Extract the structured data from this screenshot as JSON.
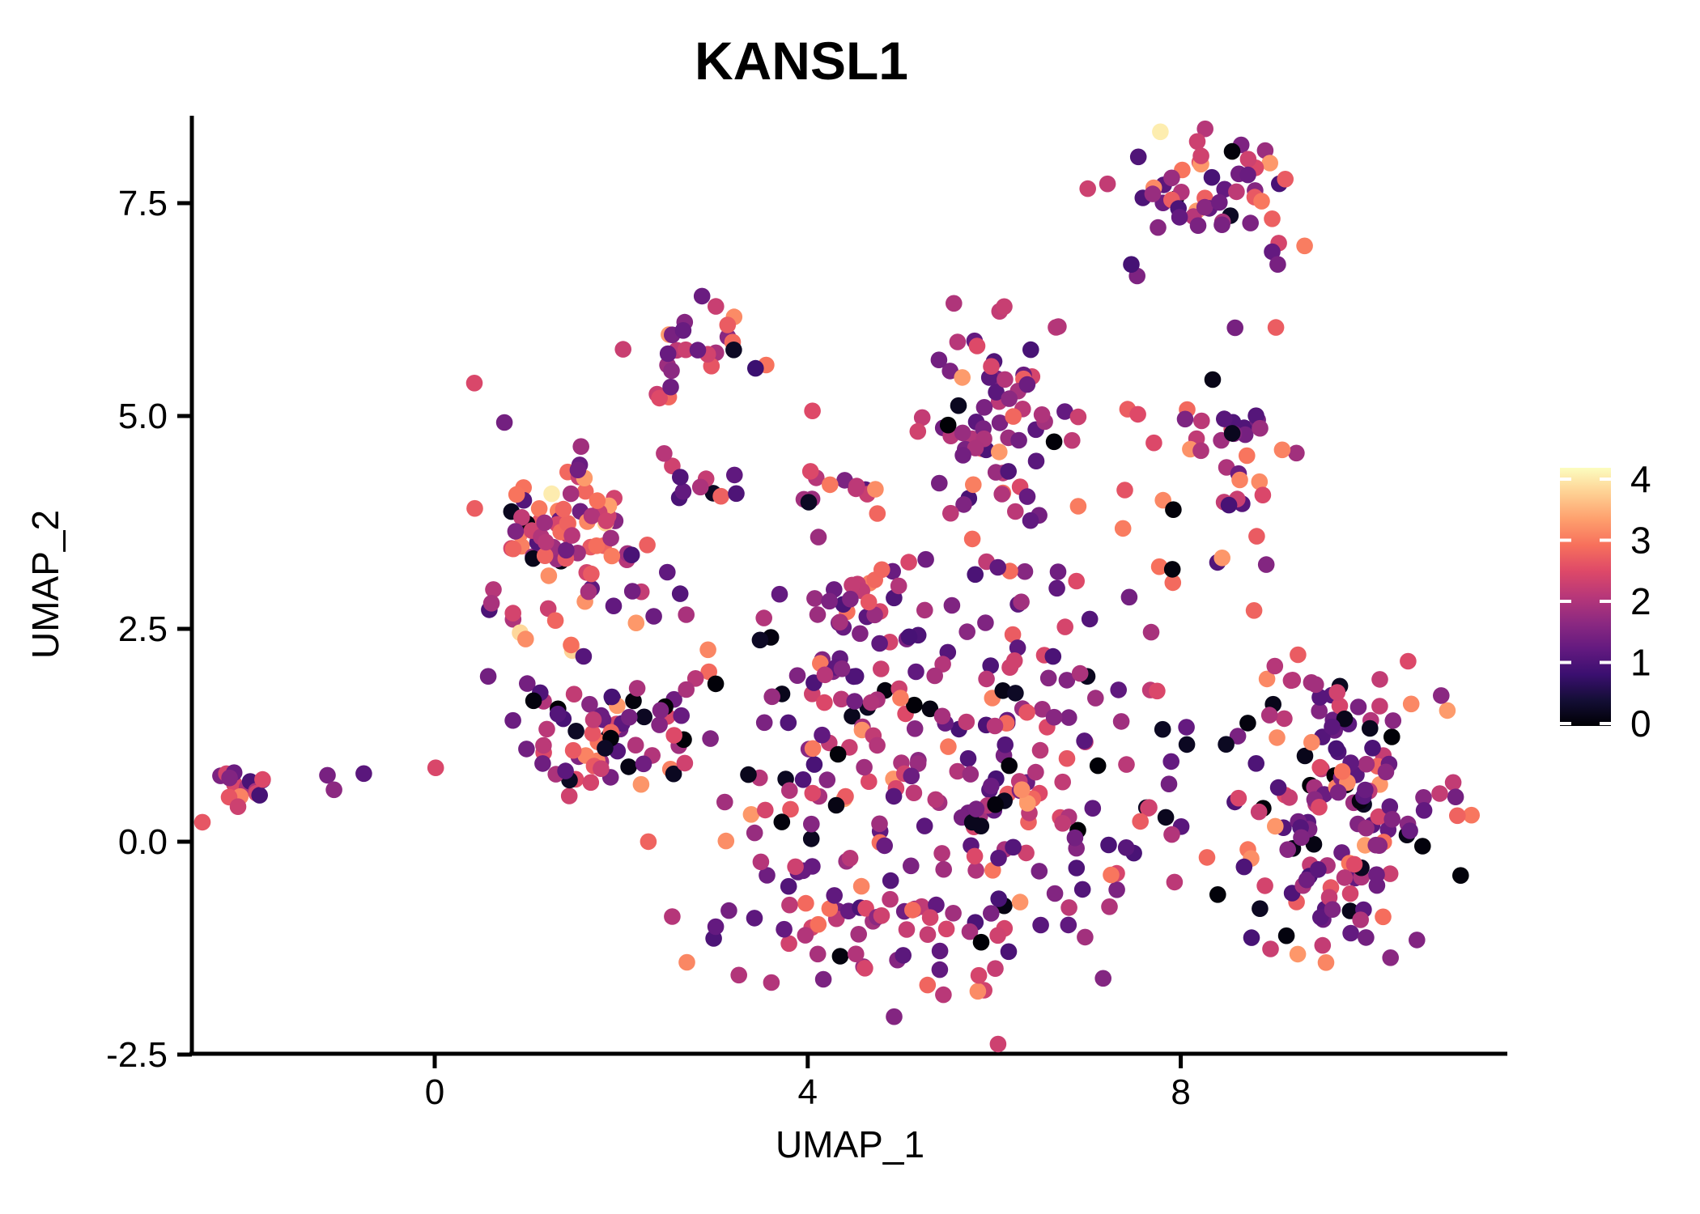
{
  "figure": {
    "background": "#ffffff",
    "axis_color": "#000000",
    "text_color": "#000000"
  },
  "chart_data": {
    "type": "scatter",
    "title": "KANSL1",
    "xlabel": "UMAP_1",
    "ylabel": "UMAP_2",
    "xlim": [
      -2.6,
      11.5
    ],
    "ylim": [
      -2.5,
      8.53
    ],
    "grid": false,
    "xticks": [
      {
        "value": 0,
        "label": "0"
      },
      {
        "value": 4,
        "label": "4"
      },
      {
        "value": 8,
        "label": "8"
      }
    ],
    "yticks": [
      {
        "value": -2.5,
        "label": "-2.5"
      },
      {
        "value": 0.0,
        "label": "0.0"
      },
      {
        "value": 2.5,
        "label": "2.5"
      },
      {
        "value": 5.0,
        "label": "5.0"
      },
      {
        "value": 7.5,
        "label": "7.5"
      }
    ],
    "colorbar": {
      "position": "right",
      "range": [
        0,
        4
      ],
      "ticks": [
        {
          "value": 0,
          "label": "0"
        },
        {
          "value": 1,
          "label": "1"
        },
        {
          "value": 2,
          "label": "2"
        },
        {
          "value": 3,
          "label": "3"
        },
        {
          "value": 4,
          "label": "4"
        }
      ]
    },
    "colormap": {
      "name": "magma",
      "stops": [
        {
          "t": 0.0,
          "hex": "#000004"
        },
        {
          "t": 0.1,
          "hex": "#140e36"
        },
        {
          "t": 0.2,
          "hex": "#3b0f70"
        },
        {
          "t": 0.3,
          "hex": "#641a80"
        },
        {
          "t": 0.4,
          "hex": "#8c2981"
        },
        {
          "t": 0.5,
          "hex": "#b73779"
        },
        {
          "t": 0.6,
          "hex": "#de4968"
        },
        {
          "t": 0.7,
          "hex": "#f7705c"
        },
        {
          "t": 0.8,
          "hex": "#fe9f6d"
        },
        {
          "t": 0.9,
          "hex": "#fecf92"
        },
        {
          "t": 1.0,
          "hex": "#fcfdbf"
        }
      ]
    },
    "point_style": {
      "radius_px": 10.3
    },
    "expression_bins": [
      {
        "base": 0.0,
        "jitter": 0.28
      },
      {
        "base": 0.9,
        "jitter": 0.7
      },
      {
        "base": 1.7,
        "jitter": 0.7
      },
      {
        "base": 2.5,
        "jitter": 0.7
      },
      {
        "base": 3.45,
        "jitter": 0.55
      }
    ],
    "clusters": [
      {
        "name": "far-left-blob",
        "cx": -2.13,
        "cy": 0.65,
        "sx": 0.25,
        "sy": 0.13,
        "n": 17,
        "mix": [
          0.06,
          0.28,
          0.44,
          0.22,
          0.0
        ]
      },
      {
        "name": "top-right",
        "cx": 8.33,
        "cy": 7.6,
        "sx": 0.5,
        "sy": 0.38,
        "n": 52,
        "mix": [
          0.08,
          0.3,
          0.36,
          0.24,
          0.02
        ]
      },
      {
        "name": "right-middle",
        "cx": 8.62,
        "cy": 4.55,
        "sx": 0.33,
        "sy": 0.55,
        "n": 36,
        "mix": [
          0.1,
          0.25,
          0.33,
          0.3,
          0.02
        ]
      },
      {
        "name": "right-lower-top",
        "cx": 9.75,
        "cy": 1.43,
        "sx": 0.56,
        "sy": 0.36,
        "n": 42,
        "mix": [
          0.15,
          0.36,
          0.33,
          0.16,
          0.0
        ]
      },
      {
        "name": "right-lower-main",
        "cx": 9.7,
        "cy": 0.29,
        "sx": 0.62,
        "sy": 0.55,
        "n": 85,
        "mix": [
          0.17,
          0.4,
          0.29,
          0.14,
          0.0
        ]
      },
      {
        "name": "right-lower-tail",
        "cx": 9.57,
        "cy": -0.76,
        "sx": 0.47,
        "sy": 0.32,
        "n": 30,
        "mix": [
          0.12,
          0.44,
          0.32,
          0.12,
          0.0
        ]
      },
      {
        "name": "top-middle",
        "cx": 2.86,
        "cy": 5.85,
        "sx": 0.3,
        "sy": 0.26,
        "n": 24,
        "mix": [
          0.05,
          0.28,
          0.34,
          0.31,
          0.02
        ]
      },
      {
        "name": "mid-upper",
        "cx": 6.1,
        "cy": 4.99,
        "sx": 0.42,
        "sy": 0.58,
        "n": 68,
        "mix": [
          0.05,
          0.5,
          0.33,
          0.11,
          0.01
        ]
      },
      {
        "name": "left-dense",
        "cx": 1.33,
        "cy": 3.56,
        "sx": 0.45,
        "sy": 0.58,
        "n": 92,
        "mix": [
          0.05,
          0.2,
          0.33,
          0.36,
          0.06
        ]
      },
      {
        "name": "left-band",
        "cx": 1.72,
        "cy": 1.33,
        "sx": 0.62,
        "sy": 0.48,
        "n": 72,
        "mix": [
          0.12,
          0.38,
          0.33,
          0.17,
          0.0
        ]
      },
      {
        "name": "cloud-top-band",
        "cx": 5.06,
        "cy": 2.85,
        "sx": 1.35,
        "sy": 0.5,
        "n": 64,
        "mix": [
          0.1,
          0.4,
          0.33,
          0.17,
          0.0
        ]
      },
      {
        "name": "row-left",
        "cx": 2.93,
        "cy": 4.18,
        "sx": 0.28,
        "sy": 0.14,
        "n": 10,
        "mix": [
          0.05,
          0.3,
          0.4,
          0.25,
          0.0
        ]
      },
      {
        "name": "row-mid",
        "cx": 4.44,
        "cy": 4.21,
        "sx": 0.33,
        "sy": 0.15,
        "n": 13,
        "mix": [
          0.1,
          0.28,
          0.37,
          0.25,
          0.0
        ]
      },
      {
        "name": "central-west",
        "cx": 4.37,
        "cy": 0.76,
        "sx": 0.78,
        "sy": 0.88,
        "n": 105,
        "mix": [
          0.1,
          0.42,
          0.32,
          0.16,
          0.0
        ]
      },
      {
        "name": "central-east",
        "cx": 6.45,
        "cy": 0.67,
        "sx": 0.82,
        "sy": 0.92,
        "n": 115,
        "mix": [
          0.12,
          0.44,
          0.3,
          0.14,
          0.0
        ]
      },
      {
        "name": "central-bottom-arc",
        "cx": 5.06,
        "cy": -0.95,
        "sx": 1.1,
        "sy": 0.5,
        "n": 70,
        "mix": [
          0.07,
          0.4,
          0.37,
          0.16,
          0.0
        ]
      }
    ],
    "outlier_points": [
      {
        "x": 9.05,
        "y": 7.03,
        "value": 2.3
      },
      {
        "x": 8.98,
        "y": 6.93,
        "value": 1.2
      },
      {
        "x": 9.04,
        "y": 6.78,
        "value": 1.4
      },
      {
        "x": 9.02,
        "y": 6.04,
        "value": 2.6
      },
      {
        "x": 7.47,
        "y": 6.78,
        "value": 0.9
      },
      {
        "x": 7.43,
        "y": 5.08,
        "value": 2.6
      },
      {
        "x": 7.54,
        "y": 5.02,
        "value": 2.4
      },
      {
        "x": 6.9,
        "y": 4.99,
        "value": 2.2
      },
      {
        "x": 7.4,
        "y": 4.13,
        "value": 2.5
      },
      {
        "x": 6.9,
        "y": 3.94,
        "value": 2.9
      },
      {
        "x": 7.38,
        "y": 3.68,
        "value": 2.9
      },
      {
        "x": 7.81,
        "y": 4.01,
        "value": 3.0
      },
      {
        "x": 7.92,
        "y": 3.9,
        "value": 0.05
      },
      {
        "x": 7.77,
        "y": 3.23,
        "value": 2.8
      },
      {
        "x": 7.91,
        "y": 3.2,
        "value": 0.08
      },
      {
        "x": -1.15,
        "y": 0.78,
        "value": 1.4
      },
      {
        "x": -1.08,
        "y": 0.61,
        "value": 1.6
      },
      {
        "x": -0.76,
        "y": 0.8,
        "value": 1.1
      },
      {
        "x": 2.41,
        "y": 5.21,
        "value": 2.4
      },
      {
        "x": 2.53,
        "y": 5.34,
        "value": 1.3
      },
      {
        "x": 3.44,
        "y": 5.56,
        "value": 0.8
      },
      {
        "x": 4.05,
        "y": 5.06,
        "value": 2.4
      },
      {
        "x": 2.46,
        "y": 4.56,
        "value": 2.0
      }
    ]
  }
}
